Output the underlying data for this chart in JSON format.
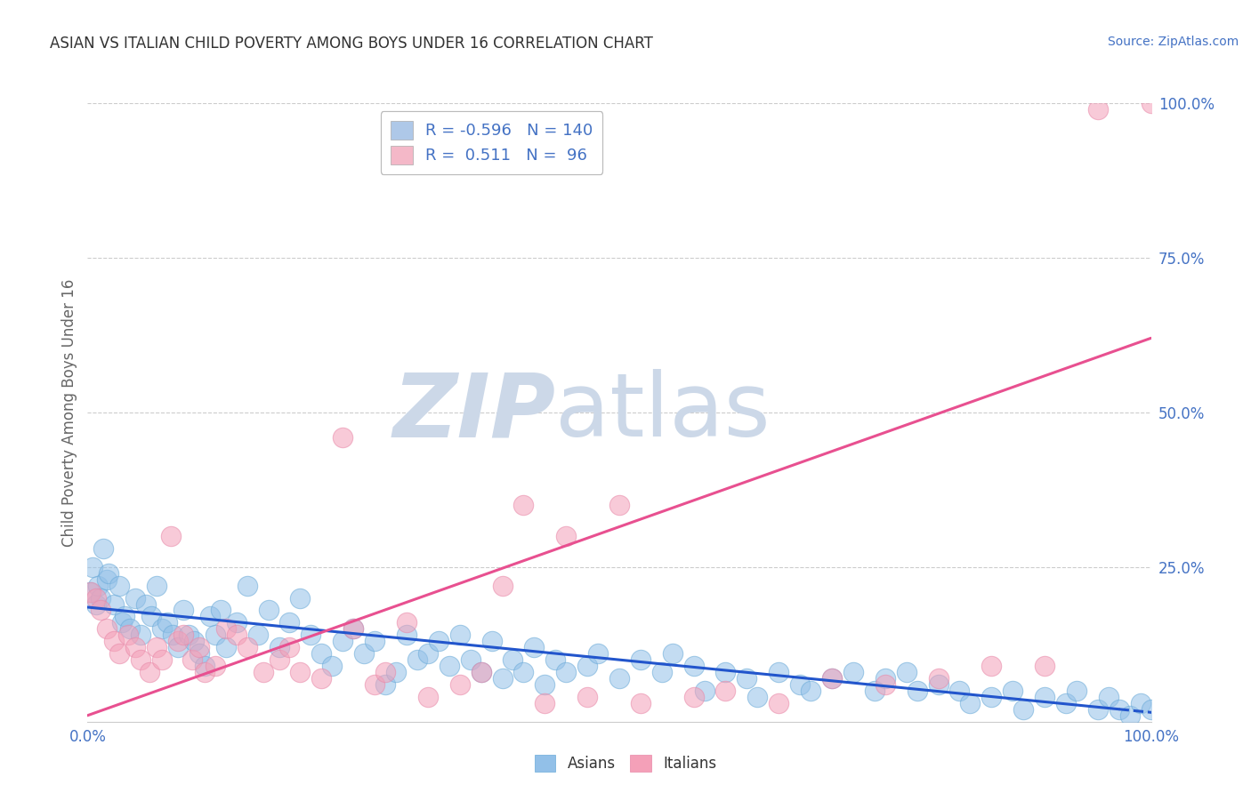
{
  "title": "ASIAN VS ITALIAN CHILD POVERTY AMONG BOYS UNDER 16 CORRELATION CHART",
  "source": "Source: ZipAtlas.com",
  "ylabel": "Child Poverty Among Boys Under 16",
  "asian_color": "#92c0e8",
  "italian_color": "#f4a0b8",
  "asian_edge_color": "#6aaad8",
  "italian_edge_color": "#e888a8",
  "asian_trend_color": "#2255cc",
  "italian_trend_color": "#e85090",
  "watermark_zip": "ZIP",
  "watermark_atlas": "atlas",
  "watermark_color": "#ccd8e8",
  "background_color": "#ffffff",
  "legend1_blue_color": "#aec8e8",
  "legend1_pink_color": "#f4b8c8",
  "tick_label_color": "#4472c4",
  "ylabel_color": "#666666",
  "title_color": "#333333",
  "source_color": "#4472c4",
  "grid_color": "#cccccc",
  "asian_x": [
    0.2,
    0.5,
    0.8,
    1.0,
    1.2,
    1.5,
    1.8,
    2.0,
    2.5,
    3.0,
    3.2,
    3.5,
    4.0,
    4.5,
    5.0,
    5.5,
    6.0,
    6.5,
    7.0,
    7.5,
    8.0,
    8.5,
    9.0,
    9.5,
    10.0,
    10.5,
    11.0,
    11.5,
    12.0,
    12.5,
    13.0,
    14.0,
    15.0,
    16.0,
    17.0,
    18.0,
    19.0,
    20.0,
    21.0,
    22.0,
    23.0,
    24.0,
    25.0,
    26.0,
    27.0,
    28.0,
    29.0,
    30.0,
    31.0,
    32.0,
    33.0,
    34.0,
    35.0,
    36.0,
    37.0,
    38.0,
    39.0,
    40.0,
    41.0,
    42.0,
    43.0,
    44.0,
    45.0,
    47.0,
    48.0,
    50.0,
    52.0,
    54.0,
    55.0,
    57.0,
    58.0,
    60.0,
    62.0,
    63.0,
    65.0,
    67.0,
    68.0,
    70.0,
    72.0,
    74.0,
    75.0,
    77.0,
    78.0,
    80.0,
    82.0,
    83.0,
    85.0,
    87.0,
    88.0,
    90.0,
    92.0,
    93.0,
    95.0,
    96.0,
    97.0,
    98.0,
    99.0,
    100.0
  ],
  "asian_y": [
    21,
    25,
    19,
    22,
    20,
    28,
    23,
    24,
    19,
    22,
    16,
    17,
    15,
    20,
    14,
    19,
    17,
    22,
    15,
    16,
    14,
    12,
    18,
    14,
    13,
    11,
    9,
    17,
    14,
    18,
    12,
    16,
    22,
    14,
    18,
    12,
    16,
    20,
    14,
    11,
    9,
    13,
    15,
    11,
    13,
    6,
    8,
    14,
    10,
    11,
    13,
    9,
    14,
    10,
    8,
    13,
    7,
    10,
    8,
    12,
    6,
    10,
    8,
    9,
    11,
    7,
    10,
    8,
    11,
    9,
    5,
    8,
    7,
    4,
    8,
    6,
    5,
    7,
    8,
    5,
    7,
    8,
    5,
    6,
    5,
    3,
    4,
    5,
    2,
    4,
    3,
    5,
    2,
    4,
    2,
    1,
    3,
    2
  ],
  "italian_x": [
    0.3,
    0.8,
    1.2,
    1.8,
    2.5,
    3.0,
    3.8,
    4.5,
    5.0,
    5.8,
    6.5,
    7.0,
    7.8,
    8.5,
    9.0,
    9.8,
    10.5,
    11.0,
    12.0,
    13.0,
    14.0,
    15.0,
    16.5,
    18.0,
    19.0,
    20.0,
    22.0,
    24.0,
    25.0,
    27.0,
    28.0,
    30.0,
    32.0,
    35.0,
    37.0,
    39.0,
    41.0,
    43.0,
    45.0,
    47.0,
    50.0,
    52.0,
    57.0,
    60.0,
    65.0,
    70.0,
    75.0,
    80.0,
    85.0,
    90.0,
    95.0,
    100.0
  ],
  "italian_y": [
    21,
    20,
    18,
    15,
    13,
    11,
    14,
    12,
    10,
    8,
    12,
    10,
    30,
    13,
    14,
    10,
    12,
    8,
    9,
    15,
    14,
    12,
    8,
    10,
    12,
    8,
    7,
    46,
    15,
    6,
    8,
    16,
    4,
    6,
    8,
    22,
    35,
    3,
    30,
    4,
    35,
    3,
    4,
    5,
    3,
    7,
    6,
    7,
    9,
    9,
    99,
    100
  ],
  "xlim": [
    0,
    100
  ],
  "ylim": [
    0,
    100
  ],
  "asian_trend_x0": 0,
  "asian_trend_y0": 18.5,
  "asian_trend_x1": 100,
  "asian_trend_y1": 1.5,
  "asian_trend_solid_end": 97,
  "italian_trend_x0": 0,
  "italian_trend_y0": 1.0,
  "italian_trend_x1": 100,
  "italian_trend_y1": 62.0
}
